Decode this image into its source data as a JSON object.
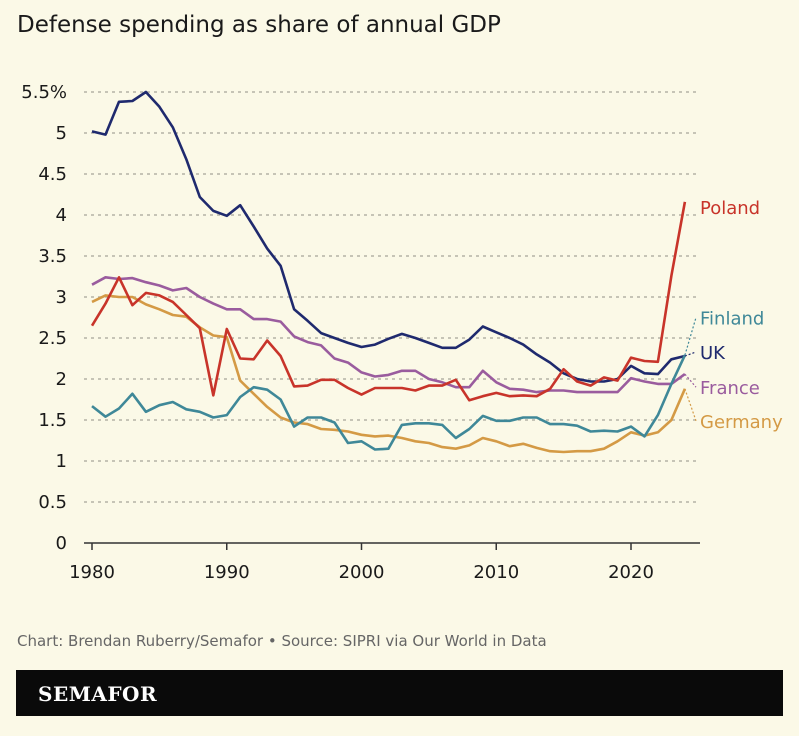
{
  "title": "Defense spending as share of annual GDP",
  "source": "Chart: Brendan Ruberry/Semafor • Source: SIPRI via Our World in Data",
  "brand": "SEMAFOR",
  "chart_data": {
    "type": "line",
    "title": "Defense spending as share of annual GDP",
    "xlabel": "",
    "ylabel": "",
    "xlim": [
      1980,
      2024
    ],
    "ylim": [
      0,
      5.5
    ],
    "x_ticks": [
      1980,
      1990,
      2000,
      2010,
      2020
    ],
    "y_ticks": [
      {
        "v": 0,
        "label": "0"
      },
      {
        "v": 0.5,
        "label": "0.5"
      },
      {
        "v": 1,
        "label": "1"
      },
      {
        "v": 1.5,
        "label": "1.5"
      },
      {
        "v": 2,
        "label": "2"
      },
      {
        "v": 2.5,
        "label": "2.5"
      },
      {
        "v": 3,
        "label": "3"
      },
      {
        "v": 3.5,
        "label": "3.5"
      },
      {
        "v": 4,
        "label": "4"
      },
      {
        "v": 4.5,
        "label": "4.5"
      },
      {
        "v": 5,
        "label": "5"
      },
      {
        "v": 5.5,
        "label": "5.5%"
      }
    ],
    "grid": true,
    "x": [
      1980,
      1981,
      1982,
      1983,
      1984,
      1985,
      1986,
      1987,
      1988,
      1989,
      1990,
      1991,
      1992,
      1993,
      1994,
      1995,
      1996,
      1997,
      1998,
      1999,
      2000,
      2001,
      2002,
      2003,
      2004,
      2005,
      2006,
      2007,
      2008,
      2009,
      2010,
      2011,
      2012,
      2013,
      2014,
      2015,
      2016,
      2017,
      2018,
      2019,
      2020,
      2021,
      2022,
      2023,
      2024
    ],
    "series": [
      {
        "name": "UK",
        "color": "#1f2a6e",
        "values": [
          5.02,
          4.98,
          5.38,
          5.39,
          5.5,
          5.32,
          5.07,
          4.68,
          4.22,
          4.05,
          3.99,
          4.12,
          3.86,
          3.59,
          3.38,
          2.85,
          2.71,
          2.56,
          2.5,
          2.44,
          2.39,
          2.42,
          2.49,
          2.55,
          2.5,
          2.44,
          2.38,
          2.38,
          2.48,
          2.64,
          2.57,
          2.5,
          2.42,
          2.3,
          2.2,
          2.07,
          2.0,
          1.97,
          1.97,
          2.0,
          2.16,
          2.07,
          2.06,
          2.24,
          2.28
        ]
      },
      {
        "name": "France",
        "color": "#9a5c9e",
        "values": [
          3.15,
          3.24,
          3.22,
          3.23,
          3.18,
          3.14,
          3.08,
          3.11,
          3.0,
          2.92,
          2.85,
          2.85,
          2.73,
          2.73,
          2.7,
          2.52,
          2.45,
          2.41,
          2.25,
          2.2,
          2.08,
          2.03,
          2.05,
          2.1,
          2.1,
          2.0,
          1.96,
          1.9,
          1.9,
          2.1,
          1.96,
          1.88,
          1.87,
          1.84,
          1.86,
          1.86,
          1.84,
          1.84,
          1.84,
          1.84,
          2.01,
          1.97,
          1.94,
          1.94,
          2.06
        ]
      },
      {
        "name": "Germany",
        "color": "#d49a45",
        "values": [
          2.94,
          3.02,
          3.0,
          3.0,
          2.91,
          2.85,
          2.78,
          2.76,
          2.63,
          2.53,
          2.51,
          1.98,
          1.82,
          1.66,
          1.53,
          1.47,
          1.45,
          1.39,
          1.38,
          1.36,
          1.32,
          1.3,
          1.31,
          1.28,
          1.24,
          1.22,
          1.17,
          1.15,
          1.19,
          1.28,
          1.24,
          1.18,
          1.21,
          1.16,
          1.12,
          1.11,
          1.12,
          1.12,
          1.15,
          1.24,
          1.35,
          1.31,
          1.35,
          1.5,
          1.88
        ]
      },
      {
        "name": "Finland",
        "color": "#3f8898",
        "values": [
          1.67,
          1.54,
          1.64,
          1.82,
          1.6,
          1.68,
          1.72,
          1.63,
          1.6,
          1.53,
          1.56,
          1.78,
          1.9,
          1.87,
          1.75,
          1.42,
          1.53,
          1.53,
          1.47,
          1.22,
          1.24,
          1.14,
          1.15,
          1.44,
          1.46,
          1.46,
          1.44,
          1.28,
          1.39,
          1.55,
          1.49,
          1.49,
          1.53,
          1.53,
          1.45,
          1.45,
          1.43,
          1.36,
          1.37,
          1.36,
          1.42,
          1.3,
          1.56,
          1.94,
          2.29
        ]
      },
      {
        "name": "Poland",
        "color": "#c8342a",
        "values": [
          2.65,
          2.92,
          3.24,
          2.9,
          3.05,
          3.02,
          2.94,
          2.78,
          2.62,
          1.8,
          2.61,
          2.25,
          2.24,
          2.47,
          2.28,
          1.91,
          1.92,
          1.99,
          1.99,
          1.89,
          1.81,
          1.89,
          1.89,
          1.89,
          1.86,
          1.92,
          1.92,
          1.99,
          1.74,
          1.79,
          1.83,
          1.79,
          1.8,
          1.79,
          1.88,
          2.12,
          1.97,
          1.92,
          2.02,
          1.98,
          2.26,
          2.22,
          2.21,
          3.26,
          4.16
        ]
      }
    ],
    "labels": [
      {
        "series": "Poland",
        "text": "Poland",
        "value": 4.1
      },
      {
        "series": "Finland",
        "text": "Finland",
        "value": 2.75
      },
      {
        "series": "UK",
        "text": "UK",
        "value": 2.33
      },
      {
        "series": "France",
        "text": "France",
        "value": 1.9
      },
      {
        "series": "Germany",
        "text": "Germany",
        "value": 1.49
      }
    ]
  }
}
